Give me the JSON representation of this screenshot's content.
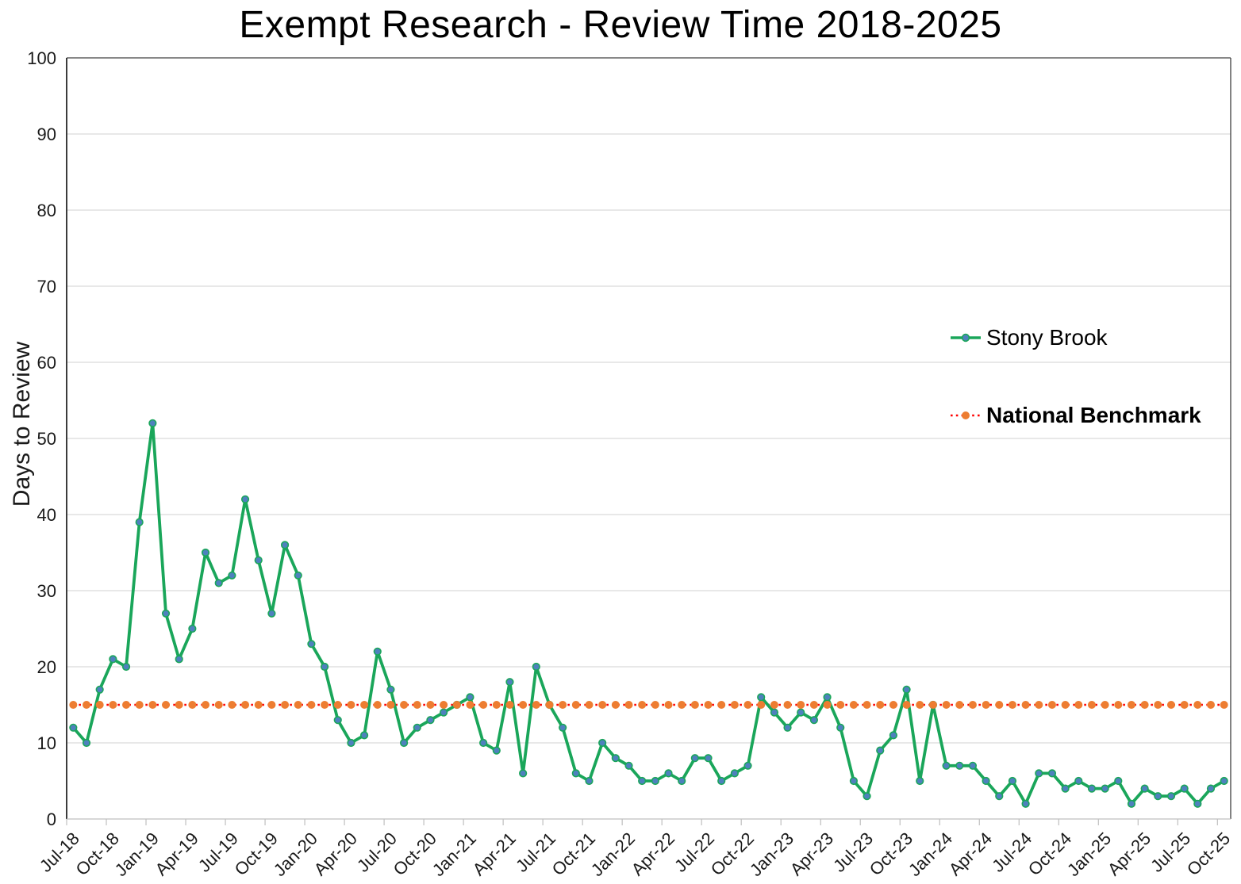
{
  "chart_data": {
    "type": "line",
    "title": "Exempt Research - Review Time 2018-2025",
    "ylabel": "Days to Review",
    "xlabel": "",
    "ylim": [
      0,
      100
    ],
    "y_ticks": [
      0,
      10,
      20,
      30,
      40,
      50,
      60,
      70,
      80,
      90,
      100
    ],
    "x_label_every_n_months": 3,
    "grid": "horizontal-light-gray",
    "legend_position": "middle-right",
    "months": [
      "Jul-18",
      "Aug-18",
      "Sep-18",
      "Oct-18",
      "Nov-18",
      "Dec-18",
      "Jan-19",
      "Feb-19",
      "Mar-19",
      "Apr-19",
      "May-19",
      "Jun-19",
      "Jul-19",
      "Aug-19",
      "Sep-19",
      "Oct-19",
      "Nov-19",
      "Dec-19",
      "Jan-20",
      "Feb-20",
      "Mar-20",
      "Apr-20",
      "May-20",
      "Jun-20",
      "Jul-20",
      "Aug-20",
      "Sep-20",
      "Oct-20",
      "Nov-20",
      "Dec-20",
      "Jan-21",
      "Feb-21",
      "Mar-21",
      "Apr-21",
      "May-21",
      "Jun-21",
      "Jul-21",
      "Aug-21",
      "Sep-21",
      "Oct-21",
      "Nov-21",
      "Dec-21",
      "Jan-22",
      "Feb-22",
      "Mar-22",
      "Apr-22",
      "May-22",
      "Jun-22",
      "Jul-22",
      "Aug-22",
      "Sep-22",
      "Oct-22",
      "Nov-22",
      "Dec-22",
      "Jan-23",
      "Feb-23",
      "Mar-23",
      "Apr-23",
      "May-23",
      "Jun-23",
      "Jul-23",
      "Aug-23",
      "Sep-23",
      "Oct-23",
      "Nov-23",
      "Dec-23",
      "Jan-24",
      "Feb-24",
      "Mar-24",
      "Apr-24",
      "May-24",
      "Jun-24",
      "Jul-24",
      "Aug-24",
      "Sep-24",
      "Oct-24",
      "Nov-24",
      "Dec-24",
      "Jan-25",
      "Feb-25",
      "Mar-25",
      "Apr-25",
      "May-25",
      "Jun-25",
      "Jul-25",
      "Aug-25",
      "Sep-25",
      "Oct-25"
    ],
    "series": [
      {
        "name": "Stony Brook",
        "line_color": "#1aa65a",
        "marker_color": "#4e81bd",
        "marker": "circle",
        "values": [
          12,
          10,
          17,
          21,
          20,
          39,
          52,
          27,
          21,
          25,
          35,
          31,
          32,
          42,
          34,
          27,
          36,
          32,
          23,
          20,
          13,
          10,
          11,
          22,
          17,
          10,
          12,
          13,
          14,
          15,
          16,
          10,
          9,
          18,
          6,
          20,
          15,
          12,
          6,
          5,
          10,
          8,
          7,
          5,
          5,
          6,
          5,
          8,
          8,
          5,
          6,
          7,
          16,
          14,
          12,
          14,
          13,
          16,
          12,
          5,
          3,
          9,
          11,
          17,
          5,
          15,
          7,
          7,
          7,
          5,
          3,
          5,
          2,
          6,
          6,
          4,
          5,
          4,
          4,
          5,
          2,
          4,
          3,
          3,
          4,
          2,
          4,
          5
        ]
      },
      {
        "name": "National Benchmark",
        "line_color": "#ff0000",
        "line_style": "dotted",
        "marker_color": "#ed7d31",
        "marker": "circle",
        "constant_value": 15
      }
    ]
  }
}
